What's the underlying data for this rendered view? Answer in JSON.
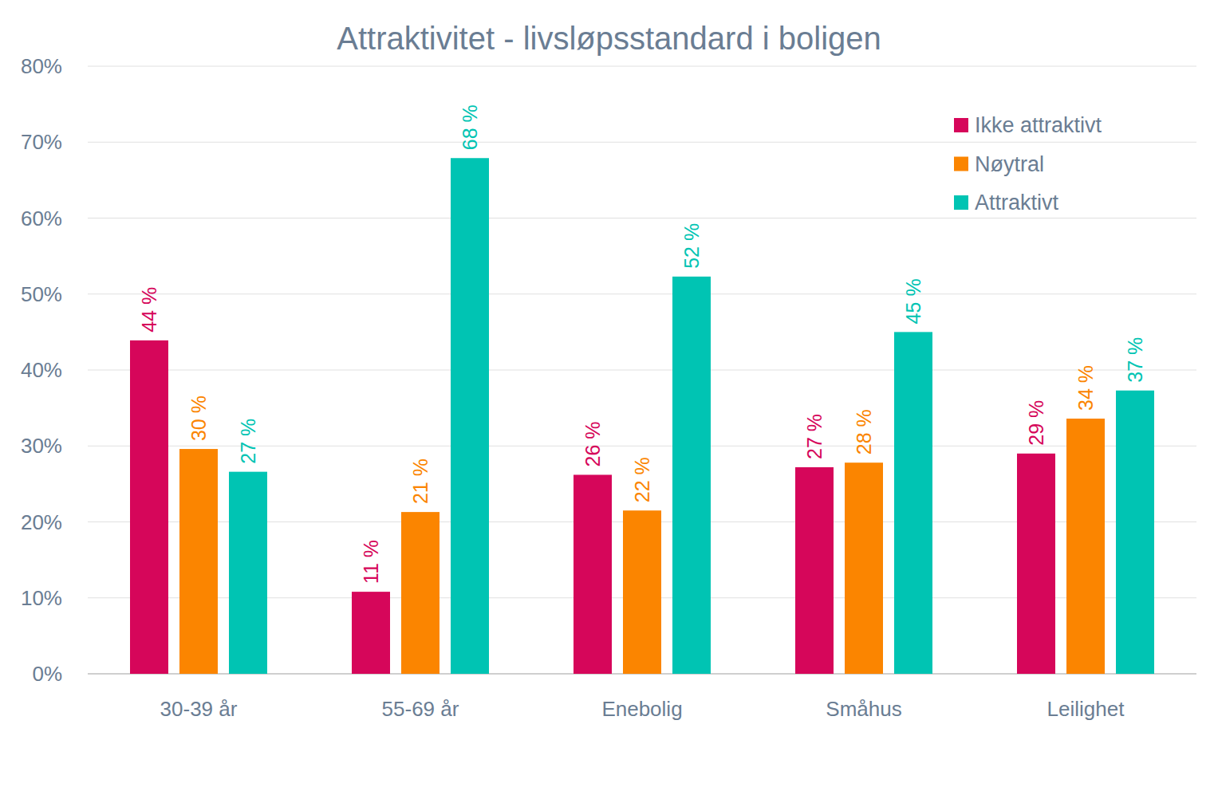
{
  "chart_data": {
    "type": "bar",
    "title": "Attraktivitet - livsløpsstandard i boligen",
    "categories": [
      "30-39 år",
      "55-69 år",
      "Enebolig",
      "Småhus",
      "Leilighet"
    ],
    "series": [
      {
        "name": "Ikke attraktivt",
        "color": "#d6065a",
        "values": [
          43.9,
          10.8,
          26.2,
          27.2,
          29.0
        ],
        "value_labels": [
          "44 %",
          "11 %",
          "26 %",
          "27 %",
          "29 %"
        ]
      },
      {
        "name": "Nøytral",
        "color": "#fb8500",
        "values": [
          29.6,
          21.3,
          21.5,
          27.8,
          33.6
        ],
        "value_labels": [
          "30 %",
          "21 %",
          "22 %",
          "28 %",
          "34 %"
        ]
      },
      {
        "name": "Attraktivt",
        "color": "#00c4b3",
        "values": [
          26.6,
          67.9,
          52.3,
          45.0,
          37.3
        ],
        "value_labels": [
          "27 %",
          "68 %",
          "52 %",
          "45 %",
          "37 %"
        ]
      }
    ],
    "ylim": [
      0,
      80
    ],
    "yticks": [
      {
        "value": 0,
        "label": "0%"
      },
      {
        "value": 10,
        "label": "10%"
      },
      {
        "value": 20,
        "label": "20%"
      },
      {
        "value": 30,
        "label": "30%"
      },
      {
        "value": 40,
        "label": "40%"
      },
      {
        "value": 50,
        "label": "50%"
      },
      {
        "value": 60,
        "label": "60%"
      },
      {
        "value": 70,
        "label": "70%"
      },
      {
        "value": 80,
        "label": "80%"
      }
    ],
    "grid": true,
    "legend": "upper-right",
    "data_labels": true
  }
}
